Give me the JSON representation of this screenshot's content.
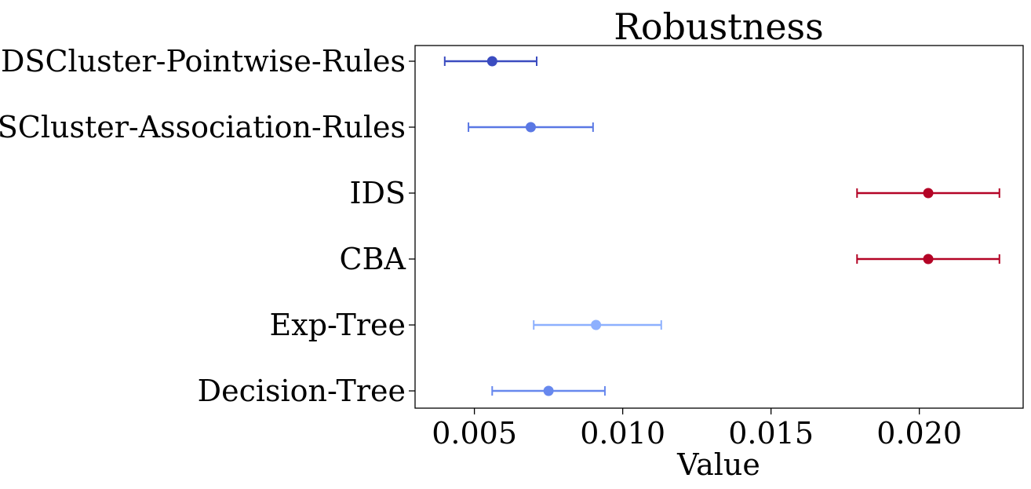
{
  "chart_data": {
    "type": "errorbar",
    "title": "Robustness",
    "xlabel": "Value",
    "ylabel": "",
    "xlim": [
      0.003,
      0.0235
    ],
    "xticks": [
      "0.005",
      "0.010",
      "0.015",
      "0.020"
    ],
    "xtick_values": [
      0.005,
      0.01,
      0.015,
      0.02
    ],
    "grid": false,
    "categories": [
      "DSCluster-Pointwise-Rules",
      "DSCluster-Association-Rules",
      "IDS",
      "CBA",
      "Exp-Tree",
      "Decision-Tree"
    ],
    "series": [
      {
        "values": [
          0.0056,
          0.0069,
          0.0203,
          0.0203,
          0.0091,
          0.0075
        ],
        "lower": [
          0.004,
          0.0048,
          0.0179,
          0.0179,
          0.007,
          0.0056
        ],
        "upper": [
          0.0071,
          0.009,
          0.0227,
          0.0227,
          0.0113,
          0.0094
        ],
        "colors": [
          "#3b4cc0",
          "#5a78e4",
          "#b40426",
          "#b40426",
          "#8db0fe",
          "#6788ee"
        ]
      }
    ]
  }
}
